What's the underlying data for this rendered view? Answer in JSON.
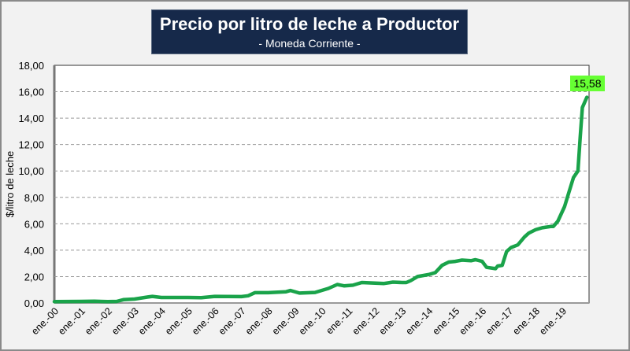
{
  "chart_data": {
    "type": "line",
    "title": "Precio por litro de leche a Productor",
    "subtitle": "- Moneda Corriente -",
    "xlabel": "",
    "ylabel": "$/litro de leche",
    "ylim": [
      0,
      18
    ],
    "yticks": [
      "0,00",
      "2,00",
      "4,00",
      "6,00",
      "8,00",
      "10,00",
      "12,00",
      "14,00",
      "16,00",
      "18,00"
    ],
    "xticks": [
      "ene.-00",
      "ene.-01",
      "ene.-02",
      "ene.-03",
      "ene.-04",
      "ene.-05",
      "ene.-06",
      "ene.-07",
      "ene.-08",
      "ene.-09",
      "ene.-10",
      "ene.-11",
      "ene.-12",
      "ene.-13",
      "ene.-14",
      "ene.-15",
      "ene.-16",
      "ene.-17",
      "ene.-18",
      "ene.-19"
    ],
    "grid": "horizontal dashed",
    "line_color": "#1aa34a",
    "last_label": "15,58",
    "last_label_color": "#66ff33",
    "series": [
      {
        "x": [
          "2000-01",
          "2001-01",
          "2001-07",
          "2002-01",
          "2002-05",
          "2002-08",
          "2003-01",
          "2003-07",
          "2003-09",
          "2004-01",
          "2005-01",
          "2005-07",
          "2006-01",
          "2007-01",
          "2007-04",
          "2007-07",
          "2008-01",
          "2008-09",
          "2008-11",
          "2009-03",
          "2009-10",
          "2010-04",
          "2010-08",
          "2010-11",
          "2011-03",
          "2011-07",
          "2012-01",
          "2012-05",
          "2012-09",
          "2013-01",
          "2013-03",
          "2013-05",
          "2013-08",
          "2014-01",
          "2014-04",
          "2014-07",
          "2014-10",
          "2015-01",
          "2015-04",
          "2015-08",
          "2015-10",
          "2016-01",
          "2016-03",
          "2016-07",
          "2016-08",
          "2016-10",
          "2016-12",
          "2017-02",
          "2017-05",
          "2017-08",
          "2017-10",
          "2018-01",
          "2018-04",
          "2018-08",
          "2018-09",
          "2018-11",
          "2019-02",
          "2019-04",
          "2019-06",
          "2019-08",
          "2019-09",
          "2019-10",
          "2019-12"
        ],
        "values": [
          0.1,
          0.12,
          0.13,
          0.1,
          0.12,
          0.25,
          0.3,
          0.45,
          0.5,
          0.42,
          0.42,
          0.4,
          0.5,
          0.48,
          0.55,
          0.78,
          0.78,
          0.85,
          0.95,
          0.75,
          0.8,
          1.1,
          1.4,
          1.3,
          1.35,
          1.55,
          1.5,
          1.48,
          1.58,
          1.55,
          1.55,
          1.7,
          2.0,
          2.15,
          2.3,
          2.85,
          3.1,
          3.15,
          3.25,
          3.2,
          3.28,
          3.15,
          2.7,
          2.6,
          2.8,
          2.85,
          3.9,
          4.2,
          4.4,
          5.0,
          5.3,
          5.55,
          5.7,
          5.8,
          5.8,
          6.2,
          7.3,
          8.4,
          9.5,
          10.0,
          12.5,
          14.8,
          15.58
        ]
      }
    ]
  }
}
